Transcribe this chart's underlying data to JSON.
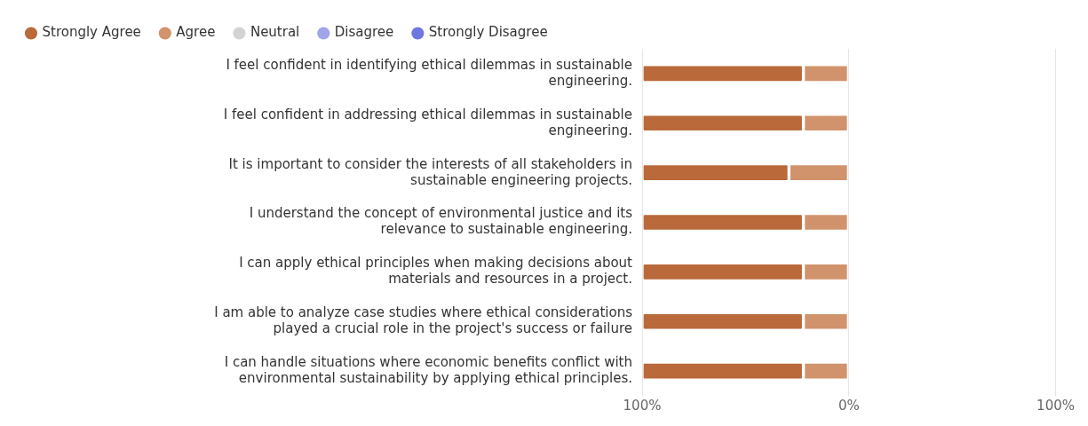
{
  "chart_data": {
    "type": "bar",
    "orientation": "horizontal",
    "stacked": true,
    "legend": "top left",
    "grid": "x",
    "categories": [
      "I feel confident in identifying ethical dilemmas in sustainable engineering.",
      "I feel confident in addressing ethical dilemmas in sustainable engineering.",
      "It is important to consider the interests of all stakeholders in sustainable engineering projects.",
      "I understand the concept of environmental justice and its relevance to sustainable engineering.",
      "I can apply ethical principles when making decisions about materials and resources in a project.",
      "I am able to analyze case studies where ethical considerations played a crucial role in the project's success or failure",
      "I can handle situations where economic benefits conflict with environmental sustainability by applying ethical principles."
    ],
    "series": [
      {
        "name": "Strongly Agree",
        "color": "#b9693a",
        "values": [
          -78,
          -78,
          -71,
          -78,
          -78,
          -78,
          -78
        ]
      },
      {
        "name": "Agree",
        "color": "#d0936c",
        "values": [
          -22,
          -22,
          -29,
          -22,
          -22,
          -22,
          -22
        ]
      },
      {
        "name": "Neutral",
        "color": "#d3d3d3",
        "values": [
          0,
          0,
          0,
          0,
          0,
          0,
          0
        ]
      },
      {
        "name": "Disagree",
        "color": "#9fa5e8",
        "values": [
          0,
          0,
          0,
          0,
          0,
          0,
          0
        ]
      },
      {
        "name": "Strongly Disagree",
        "color": "#6f78e0",
        "values": [
          0,
          0,
          0,
          0,
          0,
          0,
          0
        ]
      }
    ],
    "xlim": [
      -100,
      100
    ],
    "xticks": [
      {
        "value": -100,
        "label": "100%"
      },
      {
        "value": 0,
        "label": "0%"
      },
      {
        "value": 100,
        "label": "100%"
      }
    ]
  }
}
